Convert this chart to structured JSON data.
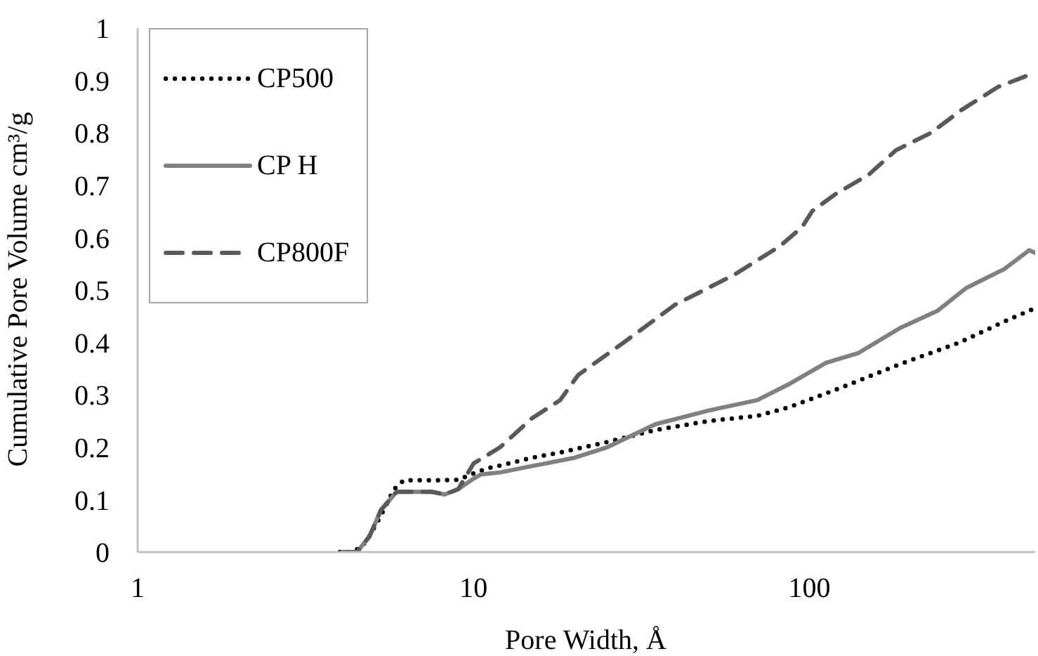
{
  "chart_data": {
    "type": "line",
    "xlabel": "Pore Width, Å",
    "ylabel": "Cumulative Pore Volume cm³/g",
    "log": "x",
    "xlim": [
      1,
      470
    ],
    "xticks": [
      1,
      10,
      100
    ],
    "ylim": [
      0,
      1
    ],
    "yticks": [
      0,
      0.1,
      0.2,
      0.3,
      0.4,
      0.5,
      0.6,
      0.7,
      0.8,
      0.9,
      1
    ],
    "grid": false,
    "legend": "top left",
    "marker": "none",
    "series": [
      {
        "name": "CP500",
        "color": "#000000",
        "line_style": "dotted",
        "x": [
          4.0,
          4.4,
          4.8,
          5.3,
          5.8,
          6.2,
          7,
          8,
          9,
          10,
          11,
          12,
          14.9,
          18.1,
          25,
          34.8,
          50,
          70,
          86.6,
          120,
          186.6,
          280,
          380,
          464,
          470
        ],
        "values": [
          0,
          0,
          0.02,
          0.07,
          0.12,
          0.137,
          0.137,
          0.137,
          0.138,
          0.15,
          0.16,
          0.165,
          0.18,
          0.19,
          0.21,
          0.233,
          0.25,
          0.26,
          0.276,
          0.31,
          0.359,
          0.4,
          0.44,
          0.464,
          0.47
        ]
      },
      {
        "name": "CP H",
        "color": "#808080",
        "line_style": "solid",
        "x": [
          4.1,
          4.5,
          4.9,
          5.3,
          5.9,
          6.5,
          7.5,
          8.2,
          9,
          10,
          10.5,
          12,
          14.9,
          20,
          25,
          34.8,
          50,
          70,
          86.6,
          112,
          140,
          186.6,
          240,
          293,
          380,
          451,
          470
        ],
        "values": [
          0,
          0,
          0.03,
          0.08,
          0.115,
          0.115,
          0.115,
          0.11,
          0.12,
          0.14,
          0.148,
          0.152,
          0.164,
          0.18,
          0.2,
          0.244,
          0.27,
          0.29,
          0.32,
          0.361,
          0.38,
          0.428,
          0.46,
          0.504,
          0.54,
          0.576,
          0.571
        ]
      },
      {
        "name": "CP800F",
        "color": "#595959",
        "line_style": "dashed",
        "x": [
          4.1,
          4.5,
          4.9,
          5.3,
          5.9,
          6.5,
          7.5,
          8.2,
          9,
          10,
          12,
          14.9,
          18.1,
          20.5,
          28,
          39.8,
          60,
          81.7,
          95,
          102,
          120,
          150,
          181,
          230,
          284,
          365,
          470
        ],
        "values": [
          0,
          0,
          0.03,
          0.08,
          0.115,
          0.115,
          0.115,
          0.11,
          0.12,
          0.169,
          0.2,
          0.255,
          0.29,
          0.338,
          0.4,
          0.472,
          0.53,
          0.584,
          0.62,
          0.651,
          0.684,
          0.72,
          0.767,
          0.8,
          0.844,
          0.888,
          0.915
        ]
      }
    ]
  }
}
